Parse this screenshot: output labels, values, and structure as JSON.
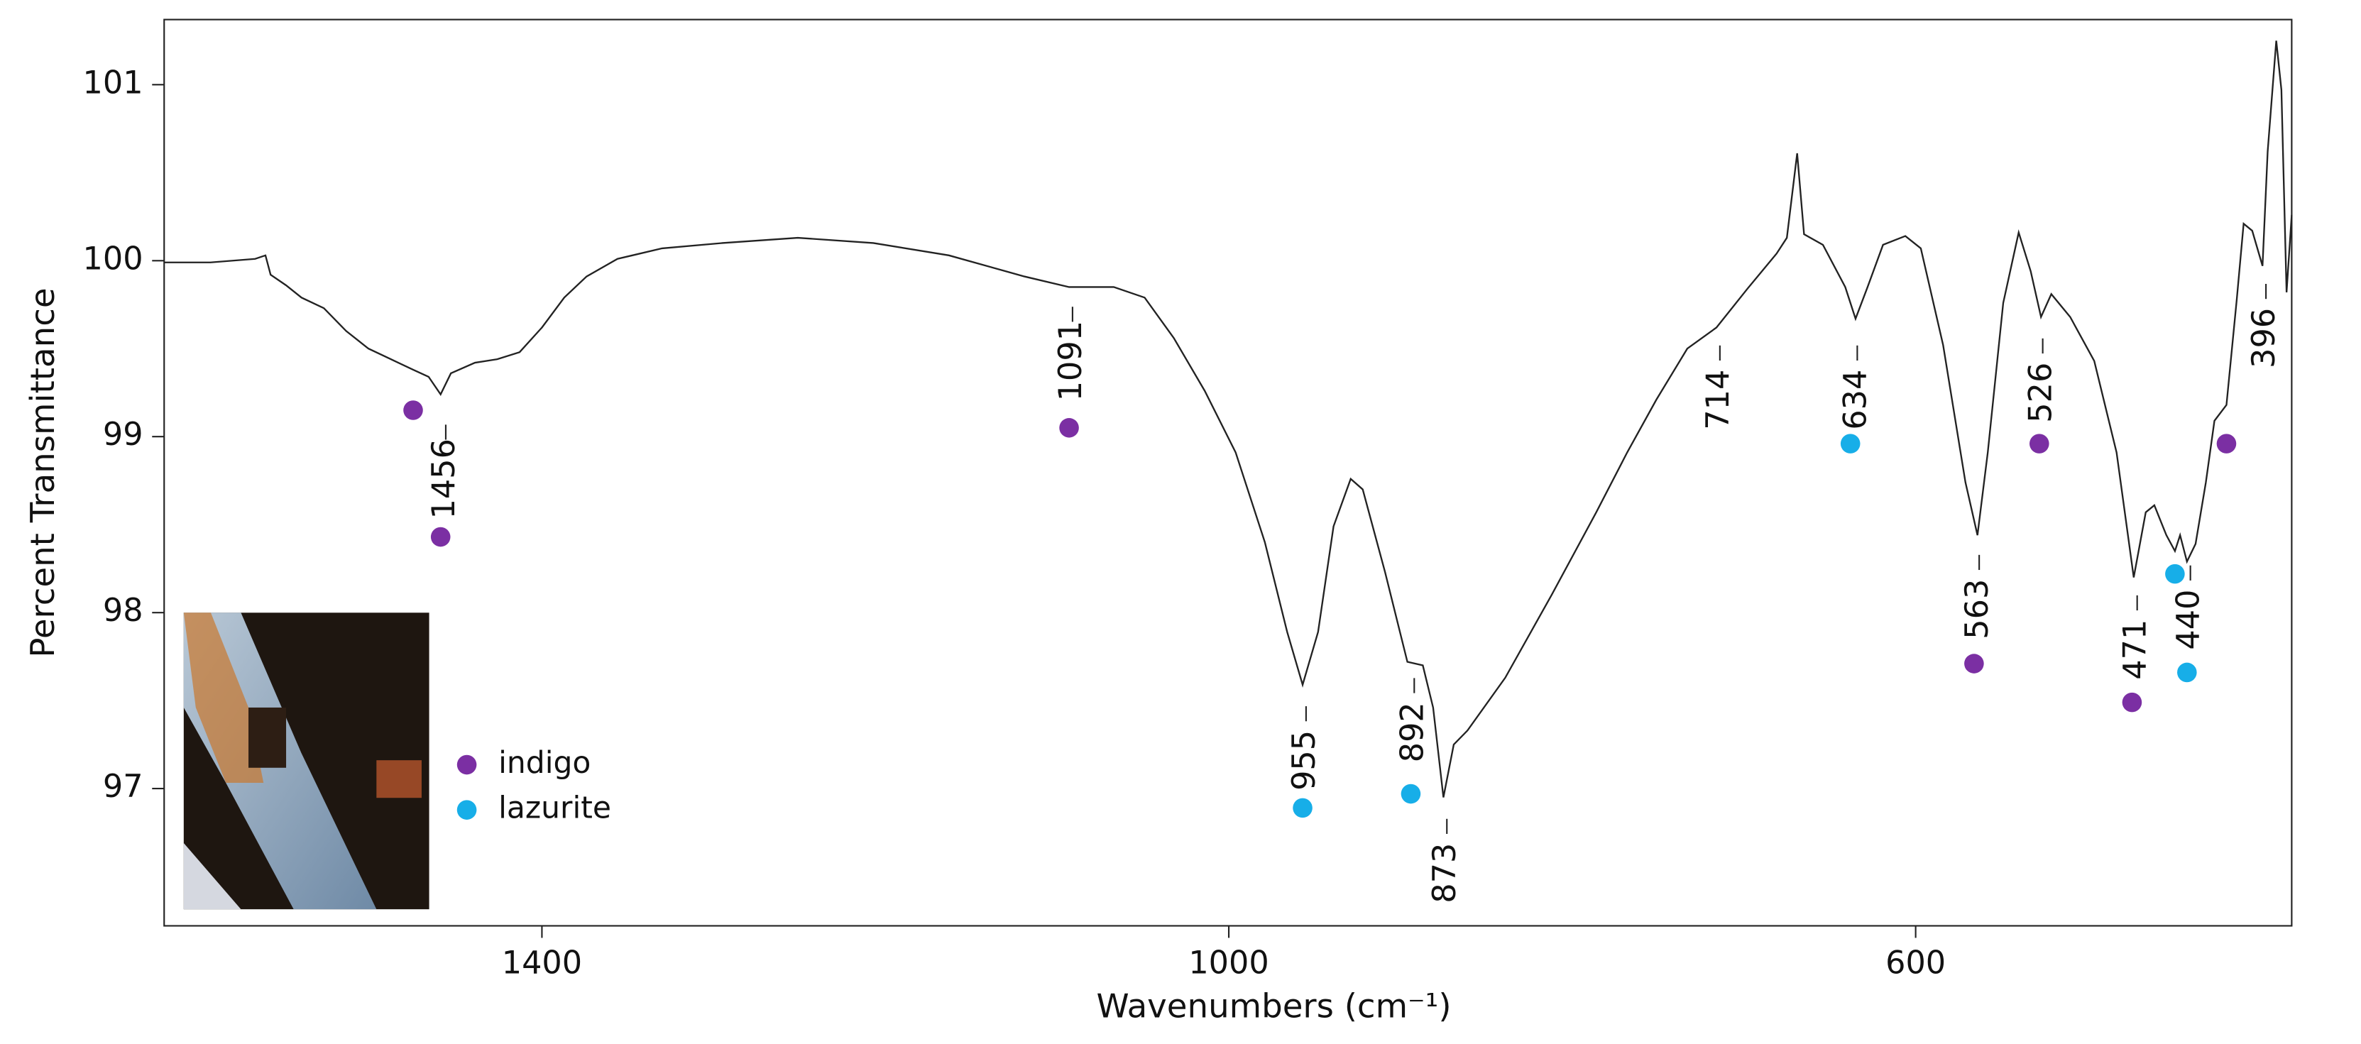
{
  "chart_data": {
    "type": "line",
    "xlabel": "Wavenumbers (cm⁻¹)",
    "ylabel": "Percent Transmittance",
    "xlim": [
      1620,
      381
    ],
    "ylim": [
      96.22,
      101.37
    ],
    "xticks": [
      1400,
      1000,
      600
    ],
    "yticks": [
      97,
      98,
      99,
      100,
      101
    ],
    "color": "#222222",
    "x": [
      1620,
      1593,
      1567,
      1561,
      1558,
      1549,
      1540,
      1527,
      1514,
      1501,
      1488,
      1475,
      1466,
      1459,
      1453,
      1439,
      1426,
      1413,
      1400,
      1387,
      1374,
      1356,
      1330,
      1295,
      1251,
      1207,
      1163,
      1119,
      1093,
      1067,
      1049,
      1032,
      1014,
      996,
      979,
      966,
      957,
      948,
      939,
      929,
      922,
      909,
      896,
      887,
      881,
      875,
      869,
      861,
      839,
      812,
      786,
      768,
      751,
      733,
      716,
      698,
      681,
      675,
      669,
      665,
      654,
      641,
      635,
      628,
      619,
      606,
      597,
      584,
      571,
      564,
      558,
      549,
      540,
      533,
      527,
      521,
      510,
      496,
      483,
      473,
      466,
      461,
      454,
      449,
      446,
      442,
      437,
      431,
      426,
      419,
      413,
      409,
      404,
      398,
      395,
      390,
      387,
      384,
      381
    ],
    "values": [
      99.99,
      99.99,
      100.01,
      100.03,
      99.92,
      99.86,
      99.79,
      99.73,
      99.6,
      99.5,
      99.44,
      99.38,
      99.34,
      99.24,
      99.36,
      99.42,
      99.44,
      99.48,
      99.62,
      99.79,
      99.91,
      100.01,
      100.07,
      100.1,
      100.13,
      100.1,
      100.03,
      99.91,
      99.85,
      99.85,
      99.79,
      99.56,
      99.26,
      98.91,
      98.4,
      97.89,
      97.59,
      97.89,
      98.49,
      98.76,
      98.7,
      98.23,
      97.72,
      97.7,
      97.46,
      96.95,
      97.25,
      97.33,
      97.63,
      98.1,
      98.57,
      98.91,
      99.21,
      99.5,
      99.62,
      99.84,
      100.04,
      100.13,
      100.61,
      100.15,
      100.09,
      99.85,
      99.67,
      99.85,
      100.09,
      100.14,
      100.07,
      99.52,
      98.74,
      98.44,
      98.91,
      99.76,
      100.16,
      99.94,
      99.68,
      99.81,
      99.68,
      99.43,
      98.91,
      98.2,
      98.57,
      98.61,
      98.44,
      98.35,
      98.44,
      98.29,
      98.39,
      98.74,
      99.09,
      99.18,
      99.78,
      100.21,
      100.17,
      99.97,
      100.62,
      101.25,
      100.97,
      99.82,
      100.26
    ],
    "markers": [
      {
        "name": "indigo",
        "color": "#7b2fa3",
        "x": [
          1475,
          1459,
          1093,
          528,
          566,
          474,
          419
        ],
        "y": [
          99.15,
          98.43,
          99.05,
          98.96,
          97.71,
          97.49,
          98.96
        ]
      },
      {
        "name": "lazurite",
        "color": "#17aee8",
        "x": [
          957,
          894,
          638,
          449,
          442
        ],
        "y": [
          96.89,
          96.97,
          98.96,
          98.22,
          97.66
        ]
      }
    ],
    "peak_labels": [
      {
        "x": 1456,
        "y": 98.76
      },
      {
        "x": 1091,
        "y": 99.43
      },
      {
        "x": 955,
        "y": 97.16
      },
      {
        "x": 892,
        "y": 97.32
      },
      {
        "x": 873,
        "y": 96.52
      },
      {
        "x": 714,
        "y": 99.21
      },
      {
        "x": 634,
        "y": 99.21
      },
      {
        "x": 563,
        "y": 98.02
      },
      {
        "x": 526,
        "y": 99.25
      },
      {
        "x": 471,
        "y": 97.79
      },
      {
        "x": 440,
        "y": 97.96
      },
      {
        "x": 396,
        "y": 99.56
      }
    ],
    "legend": "lower left"
  }
}
